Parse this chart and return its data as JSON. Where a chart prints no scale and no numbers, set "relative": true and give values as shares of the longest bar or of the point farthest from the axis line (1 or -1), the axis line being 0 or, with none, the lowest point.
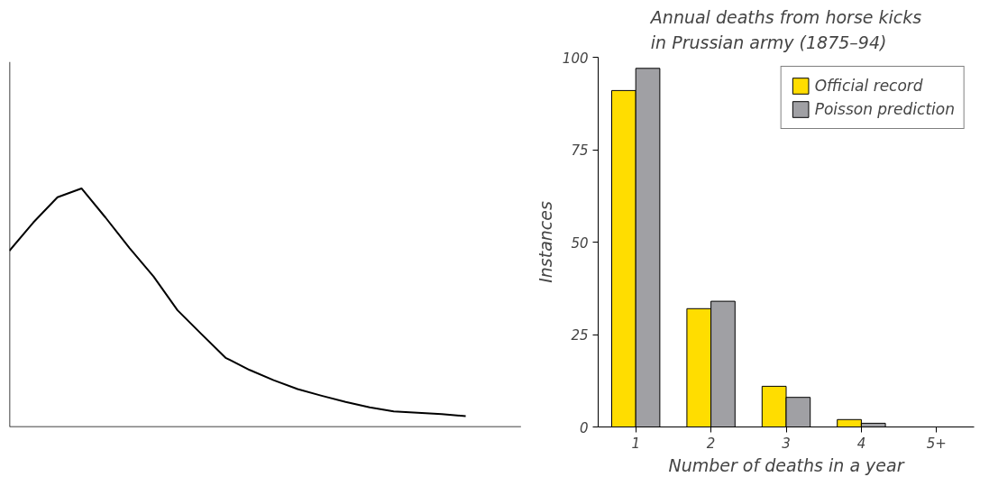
{
  "chart_data": [
    {
      "type": "line",
      "relative": true,
      "color": "#000000",
      "categories": [
        null,
        null,
        null,
        null,
        null,
        null,
        null,
        null,
        null,
        null,
        null,
        null,
        null,
        null,
        null,
        null,
        null,
        null,
        null,
        null
      ],
      "values": [
        0.739,
        0.858,
        0.963,
        1.0,
        0.878,
        0.75,
        0.631,
        0.489,
        0.389,
        0.29,
        0.239,
        0.196,
        0.159,
        0.131,
        0.105,
        0.082,
        0.065,
        0.06,
        0.054,
        0.045
      ]
    },
    {
      "type": "bar",
      "title": "Annual deaths from horse kicks\nin Prussian army (1875–94)",
      "xlabel": "Number of deaths in a year",
      "ylabel": "Instances",
      "categories": [
        "1",
        "2",
        "3",
        "4",
        "5+"
      ],
      "series": [
        {
          "name": "Official record",
          "color": "#ffdd00",
          "values": [
            91,
            32,
            11,
            2,
            null
          ]
        },
        {
          "name": "Poisson prediction",
          "color": "#a0a0a4",
          "values": [
            97,
            34,
            8,
            1,
            null
          ]
        }
      ],
      "ylim": [
        0,
        100
      ],
      "yticks": [
        0,
        25,
        50,
        75,
        100
      ],
      "grid": false,
      "legend": "top right"
    }
  ]
}
